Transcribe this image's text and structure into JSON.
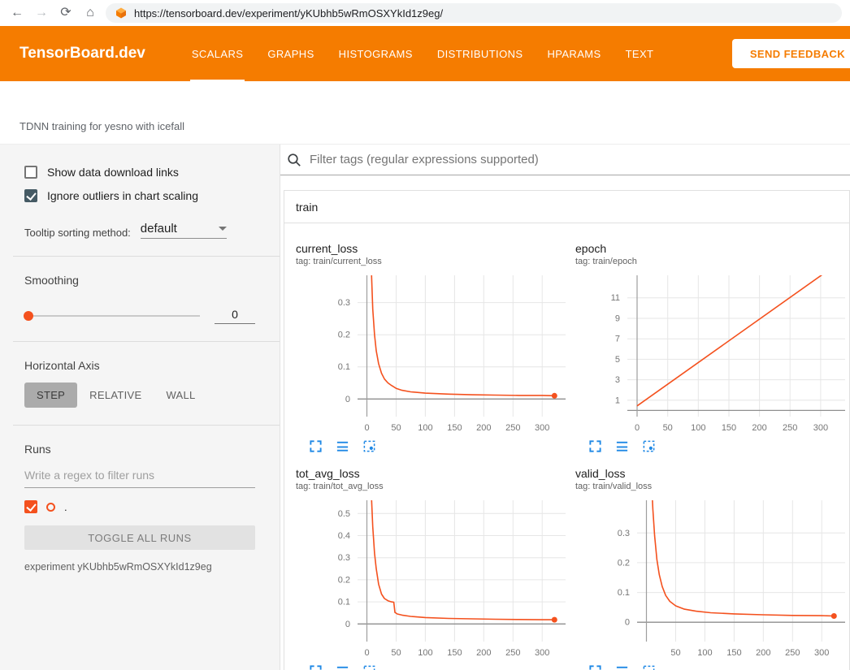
{
  "colors": {
    "header_accent": "#f57c00",
    "series": "#f4511e",
    "action_icons": "#1e88e5"
  },
  "browser": {
    "url": "https://tensorboard.dev/experiment/yKUbhb5wRmOSXYkId1z9eg/"
  },
  "header": {
    "logo": "TensorBoard.dev",
    "tabs": [
      {
        "label": "SCALARS",
        "active": true
      },
      {
        "label": "GRAPHS",
        "active": false
      },
      {
        "label": "HISTOGRAMS",
        "active": false
      },
      {
        "label": "DISTRIBUTIONS",
        "active": false
      },
      {
        "label": "HPARAMS",
        "active": false
      },
      {
        "label": "TEXT",
        "active": false
      }
    ],
    "feedback_button": "SEND FEEDBACK"
  },
  "experiment": {
    "title": "TDNN training for yesno with icefall",
    "id_caption": "experiment yKUbhb5wRmOSXYkId1z9eg"
  },
  "sidebar": {
    "show_download": {
      "label": "Show data download links",
      "checked": false
    },
    "ignore_outliers": {
      "label": "Ignore outliers in chart scaling",
      "checked": true
    },
    "tooltip_sorting": {
      "label": "Tooltip sorting method:",
      "value": "default"
    },
    "smoothing": {
      "label": "Smoothing",
      "value": "0"
    },
    "horizontal_axis": {
      "label": "Horizontal Axis",
      "options": [
        "STEP",
        "RELATIVE",
        "WALL"
      ],
      "selected": "STEP"
    },
    "runs": {
      "label": "Runs",
      "filter_placeholder": "Write a regex to filter runs",
      "run_name": ".",
      "run_checked": true,
      "toggle_all_label": "TOGGLE ALL RUNS"
    }
  },
  "main": {
    "filter_placeholder": "Filter tags (regular expressions supported)",
    "section": "train"
  },
  "chart_data": [
    {
      "type": "line",
      "title": "current_loss",
      "tag": "tag: train/current_loss",
      "run": ".",
      "xlim": [
        -16,
        340
      ],
      "ylim": [
        -0.055,
        0.385
      ],
      "xticks": [
        0,
        50,
        100,
        150,
        200,
        250,
        300
      ],
      "yticks": [
        0,
        0.1,
        0.2,
        0.3
      ],
      "x": [
        2,
        4,
        6,
        8,
        10,
        13,
        16,
        20,
        25,
        30,
        36,
        42,
        50,
        60,
        75,
        100,
        140,
        180,
        220,
        260,
        300,
        321
      ],
      "y": [
        1.6,
        0.9,
        0.55,
        0.38,
        0.28,
        0.2,
        0.15,
        0.11,
        0.08,
        0.062,
        0.05,
        0.042,
        0.033,
        0.027,
        0.022,
        0.018,
        0.015,
        0.013,
        0.012,
        0.011,
        0.011,
        0.01
      ],
      "endpoint": true
    },
    {
      "type": "line",
      "title": "epoch",
      "tag": "tag: train/epoch",
      "run": ".",
      "xlim": [
        -16,
        340
      ],
      "ylim": [
        -0.6,
        13.2
      ],
      "xticks": [
        0,
        50,
        100,
        150,
        200,
        250,
        300
      ],
      "yticks": [
        1,
        3,
        5,
        7,
        9,
        11
      ],
      "x": [
        0,
        320
      ],
      "y": [
        0.45,
        14
      ],
      "endpoint": false
    },
    {
      "type": "line",
      "title": "tot_avg_loss",
      "tag": "tag: train/tot_avg_loss",
      "run": ".",
      "xlim": [
        -16,
        340
      ],
      "ylim": [
        -0.08,
        0.56
      ],
      "xticks": [
        0,
        50,
        100,
        150,
        200,
        250,
        300
      ],
      "yticks": [
        0,
        0.1,
        0.2,
        0.3,
        0.4,
        0.5
      ],
      "x": [
        2,
        4,
        6,
        8,
        10,
        13,
        16,
        20,
        25,
        30,
        36,
        42,
        46,
        48,
        52,
        60,
        75,
        100,
        140,
        180,
        220,
        260,
        300,
        321
      ],
      "y": [
        2.0,
        1.2,
        0.8,
        0.56,
        0.44,
        0.32,
        0.25,
        0.18,
        0.135,
        0.115,
        0.105,
        0.1,
        0.098,
        0.052,
        0.045,
        0.04,
        0.034,
        0.029,
        0.025,
        0.023,
        0.021,
        0.02,
        0.019,
        0.019
      ],
      "endpoint": true
    },
    {
      "type": "line",
      "title": "valid_loss",
      "tag": "tag: train/valid_loss",
      "run": ".",
      "xlim": [
        -16,
        340
      ],
      "ylim": [
        -0.065,
        0.41
      ],
      "xticks": [
        50,
        100,
        150,
        200,
        250,
        300
      ],
      "yticks": [
        0,
        0.1,
        0.2,
        0.3
      ],
      "x": [
        3,
        5,
        8,
        11,
        14,
        18,
        22,
        27,
        33,
        40,
        50,
        65,
        85,
        110,
        150,
        200,
        250,
        300,
        321
      ],
      "y": [
        1.2,
        0.8,
        0.5,
        0.38,
        0.29,
        0.21,
        0.16,
        0.12,
        0.09,
        0.07,
        0.055,
        0.044,
        0.037,
        0.032,
        0.028,
        0.025,
        0.023,
        0.022,
        0.021
      ],
      "endpoint": true
    }
  ]
}
